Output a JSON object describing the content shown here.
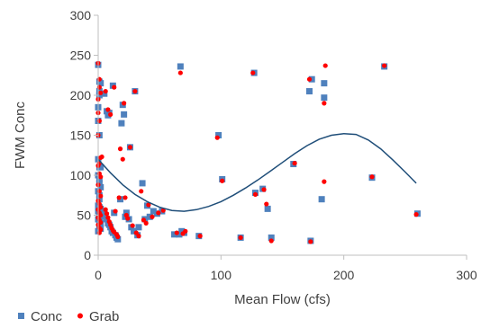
{
  "chart_data": {
    "type": "scatter",
    "title": "",
    "xlabel": "Mean Flow (cfs)",
    "ylabel": "FWM Conc",
    "xlim": [
      0,
      300
    ],
    "ylim": [
      0,
      300
    ],
    "xticks": [
      0,
      100,
      200,
      300
    ],
    "yticks": [
      0,
      50,
      100,
      150,
      200,
      250,
      300
    ],
    "grid": false,
    "legend_position": "bottom-left",
    "series": [
      {
        "name": "Conc",
        "marker": "square",
        "color": "#4f81bd",
        "points": [
          [
            0,
            238
          ],
          [
            1,
            217
          ],
          [
            1,
            205
          ],
          [
            1,
            200
          ],
          [
            2,
            215
          ],
          [
            0,
            185
          ],
          [
            0,
            168
          ],
          [
            1,
            150
          ],
          [
            0,
            120
          ],
          [
            1,
            110
          ],
          [
            2,
            110
          ],
          [
            0,
            100
          ],
          [
            1,
            95
          ],
          [
            1,
            90
          ],
          [
            2,
            85
          ],
          [
            0,
            80
          ],
          [
            1,
            75
          ],
          [
            1,
            70
          ],
          [
            0,
            62
          ],
          [
            1,
            60
          ],
          [
            2,
            58
          ],
          [
            0,
            55
          ],
          [
            1,
            50
          ],
          [
            2,
            48
          ],
          [
            0,
            45
          ],
          [
            1,
            42
          ],
          [
            2,
            40
          ],
          [
            1,
            35
          ],
          [
            2,
            33
          ],
          [
            0,
            30
          ],
          [
            5,
            202
          ],
          [
            7,
            180
          ],
          [
            8,
            175
          ],
          [
            9,
            178
          ],
          [
            12,
            212
          ],
          [
            5,
            55
          ],
          [
            6,
            50
          ],
          [
            7,
            45
          ],
          [
            8,
            40
          ],
          [
            9,
            38
          ],
          [
            10,
            35
          ],
          [
            11,
            30
          ],
          [
            12,
            28
          ],
          [
            13,
            53
          ],
          [
            14,
            25
          ],
          [
            15,
            22
          ],
          [
            16,
            20
          ],
          [
            18,
            70
          ],
          [
            19,
            165
          ],
          [
            20,
            188
          ],
          [
            21,
            176
          ],
          [
            22,
            48
          ],
          [
            23,
            53
          ],
          [
            25,
            45
          ],
          [
            26,
            135
          ],
          [
            27,
            35
          ],
          [
            29,
            30
          ],
          [
            30,
            205
          ],
          [
            32,
            25
          ],
          [
            33,
            35
          ],
          [
            36,
            90
          ],
          [
            38,
            45
          ],
          [
            40,
            62
          ],
          [
            42,
            48
          ],
          [
            45,
            55
          ],
          [
            48,
            52
          ],
          [
            52,
            55
          ],
          [
            62,
            26
          ],
          [
            66,
            26
          ],
          [
            68,
            30
          ],
          [
            70,
            28
          ],
          [
            82,
            24
          ],
          [
            67,
            236
          ],
          [
            98,
            150
          ],
          [
            101,
            95
          ],
          [
            116,
            22
          ],
          [
            127,
            228
          ],
          [
            128,
            78
          ],
          [
            134,
            83
          ],
          [
            138,
            58
          ],
          [
            141,
            22
          ],
          [
            159,
            114
          ],
          [
            173,
            18
          ],
          [
            172,
            205
          ],
          [
            174,
            220
          ],
          [
            182,
            70
          ],
          [
            184,
            215
          ],
          [
            184,
            197
          ],
          [
            223,
            97
          ],
          [
            233,
            236
          ],
          [
            260,
            52
          ]
        ]
      },
      {
        "name": "Grab",
        "marker": "circle",
        "color": "#ff0000",
        "points": [
          [
            0,
            240
          ],
          [
            1,
            220
          ],
          [
            1,
            210
          ],
          [
            2,
            203
          ],
          [
            0,
            195
          ],
          [
            0,
            178
          ],
          [
            1,
            168
          ],
          [
            0,
            150
          ],
          [
            2,
            122
          ],
          [
            1,
            115
          ],
          [
            0,
            112
          ],
          [
            1,
            102
          ],
          [
            2,
            98
          ],
          [
            0,
            88
          ],
          [
            1,
            80
          ],
          [
            2,
            74
          ],
          [
            0,
            68
          ],
          [
            1,
            64
          ],
          [
            2,
            60
          ],
          [
            0,
            57
          ],
          [
            1,
            53
          ],
          [
            2,
            50
          ],
          [
            0,
            47
          ],
          [
            1,
            44
          ],
          [
            2,
            41
          ],
          [
            0,
            38
          ],
          [
            1,
            34
          ],
          [
            2,
            32
          ],
          [
            1,
            28
          ],
          [
            3,
            123
          ],
          [
            6,
            205
          ],
          [
            8,
            182
          ],
          [
            10,
            176
          ],
          [
            13,
            210
          ],
          [
            6,
            57
          ],
          [
            7,
            52
          ],
          [
            8,
            47
          ],
          [
            9,
            42
          ],
          [
            10,
            38
          ],
          [
            11,
            34
          ],
          [
            12,
            31
          ],
          [
            13,
            29
          ],
          [
            14,
            55
          ],
          [
            15,
            26
          ],
          [
            16,
            23
          ],
          [
            17,
            72
          ],
          [
            18,
            133
          ],
          [
            20,
            120
          ],
          [
            21,
            190
          ],
          [
            22,
            72
          ],
          [
            23,
            50
          ],
          [
            24,
            46
          ],
          [
            26,
            135
          ],
          [
            28,
            37
          ],
          [
            30,
            205
          ],
          [
            31,
            28
          ],
          [
            33,
            24
          ],
          [
            35,
            80
          ],
          [
            37,
            44
          ],
          [
            39,
            40
          ],
          [
            41,
            63
          ],
          [
            44,
            48
          ],
          [
            49,
            53
          ],
          [
            53,
            56
          ],
          [
            64,
            28
          ],
          [
            67,
            228
          ],
          [
            69,
            27
          ],
          [
            71,
            30
          ],
          [
            83,
            24
          ],
          [
            97,
            147
          ],
          [
            101,
            93
          ],
          [
            116,
            22
          ],
          [
            126,
            228
          ],
          [
            128,
            76
          ],
          [
            135,
            82
          ],
          [
            137,
            64
          ],
          [
            141,
            18
          ],
          [
            160,
            115
          ],
          [
            172,
            220
          ],
          [
            173,
            17
          ],
          [
            184,
            92
          ],
          [
            184,
            190
          ],
          [
            185,
            237
          ],
          [
            223,
            98
          ],
          [
            233,
            237
          ],
          [
            259,
            51
          ]
        ]
      }
    ],
    "trendline": {
      "type": "polynomial",
      "order": 3,
      "color": "#1f4e79",
      "x_range": [
        0,
        259
      ],
      "points": [
        [
          0,
          120
        ],
        [
          10,
          103
        ],
        [
          20,
          88
        ],
        [
          30,
          76
        ],
        [
          40,
          67
        ],
        [
          50,
          60
        ],
        [
          60,
          56
        ],
        [
          70,
          55
        ],
        [
          80,
          57
        ],
        [
          90,
          61
        ],
        [
          100,
          67
        ],
        [
          110,
          75
        ],
        [
          120,
          84
        ],
        [
          130,
          94
        ],
        [
          140,
          105
        ],
        [
          150,
          116
        ],
        [
          160,
          127
        ],
        [
          170,
          137
        ],
        [
          180,
          145
        ],
        [
          190,
          150
        ],
        [
          200,
          152
        ],
        [
          210,
          151
        ],
        [
          220,
          144
        ],
        [
          230,
          133
        ],
        [
          240,
          119
        ],
        [
          250,
          104
        ],
        [
          259,
          90
        ]
      ]
    }
  }
}
